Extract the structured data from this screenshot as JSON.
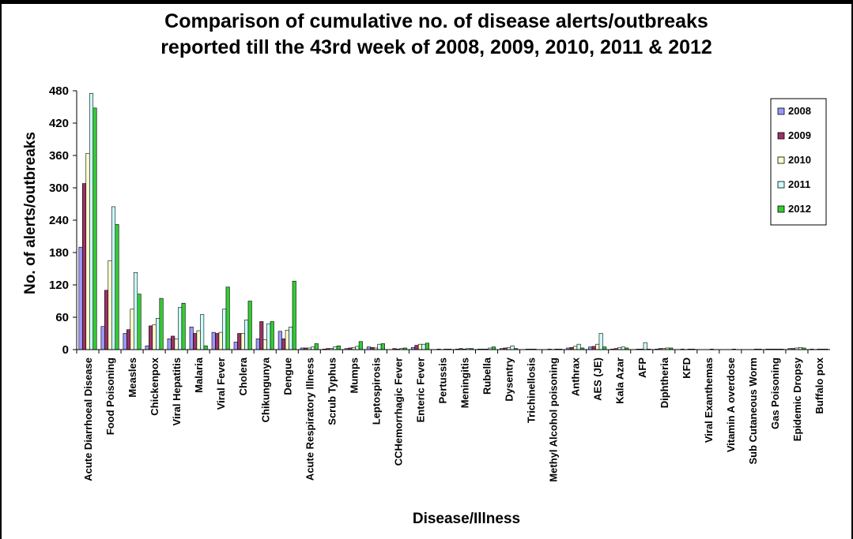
{
  "chart_data": {
    "type": "bar",
    "title": [
      "Comparison of cumulative no. of disease alerts/outbreaks",
      "reported till the 43rd week of 2008, 2009, 2010, 2011 & 2012"
    ],
    "xlabel": "Disease/Illness",
    "ylabel": "No. of alerts/outbreaks",
    "ylim": [
      0,
      480
    ],
    "yticks": [
      "0",
      "60",
      "120",
      "180",
      "240",
      "300",
      "360",
      "420",
      "480"
    ],
    "legend_position": "top-right",
    "grid": false,
    "categories": [
      "Acute Diarrhoeal Disease",
      "Food Poisoning",
      "Measles",
      "Chickenpox",
      "Viral Hepatitis",
      "Malaria",
      "Viral Fever",
      "Cholera",
      "Chikungunya",
      "Dengue",
      "Acute Respiratory Illness",
      "Scrub Typhus",
      "Mumps",
      "Leptospirosis",
      "CCHemorrhagic Fever",
      "Enteric Fever",
      "Pertussis",
      "Meningitis",
      "Rubella",
      "Dysentry",
      "Trichinellosis",
      "Methyl Alcohol poisoning",
      "Anthrax",
      "AES (JE)",
      "Kala Azar",
      "AFP",
      "Diphtheria",
      "KFD",
      "Viral Exanthemas",
      "Vitamin A overdose",
      "Sub Cutaneous Worm",
      "Gas Poisoning",
      "Epidemic Dropsy",
      "Buffalo pox"
    ],
    "series": [
      {
        "name": "2008",
        "color": "#9999ff",
        "values": [
          190,
          43,
          30,
          7,
          20,
          42,
          32,
          14,
          20,
          34,
          3,
          1,
          2,
          5,
          0,
          4,
          0,
          1,
          1,
          2,
          0,
          0,
          3,
          5,
          1,
          0,
          1,
          0,
          0,
          0,
          0,
          1,
          2,
          1
        ]
      },
      {
        "name": "2009",
        "color": "#993366",
        "values": [
          308,
          110,
          37,
          44,
          25,
          30,
          30,
          30,
          52,
          20,
          3,
          2,
          3,
          4,
          2,
          8,
          1,
          2,
          1,
          3,
          1,
          1,
          4,
          6,
          2,
          1,
          2,
          1,
          0,
          0,
          0,
          1,
          2,
          0
        ]
      },
      {
        "name": "2010",
        "color": "#ffffcc",
        "values": [
          364,
          165,
          75,
          46,
          20,
          35,
          32,
          30,
          18,
          36,
          3,
          2,
          4,
          3,
          1,
          10,
          0,
          1,
          1,
          4,
          1,
          0,
          6,
          10,
          4,
          1,
          2,
          0,
          0,
          0,
          0,
          1,
          3,
          1
        ]
      },
      {
        "name": "2011",
        "color": "#ccffff",
        "values": [
          475,
          265,
          143,
          58,
          78,
          65,
          75,
          55,
          48,
          42,
          5,
          5,
          6,
          10,
          2,
          10,
          1,
          2,
          3,
          7,
          1,
          1,
          10,
          30,
          5,
          13,
          3,
          1,
          1,
          1,
          1,
          1,
          4,
          1
        ]
      },
      {
        "name": "2012",
        "color": "#33cc33",
        "values": [
          448,
          232,
          103,
          95,
          86,
          7,
          116,
          90,
          52,
          127,
          11,
          7,
          15,
          11,
          3,
          12,
          1,
          2,
          5,
          2,
          0,
          1,
          3,
          5,
          3,
          1,
          3,
          1,
          0,
          0,
          1,
          1,
          3,
          1
        ]
      }
    ]
  }
}
